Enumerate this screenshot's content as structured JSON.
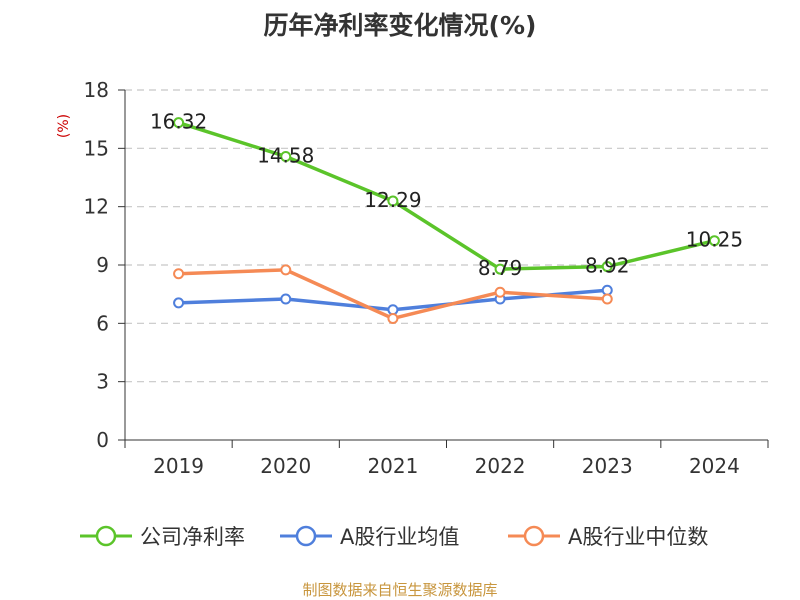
{
  "chart_data": {
    "type": "line",
    "title": "历年净利率变化情况(%)",
    "ylabel": "(%)",
    "categories": [
      "2019",
      "2020",
      "2021",
      "2022",
      "2023",
      "2024"
    ],
    "yticks": [
      0,
      3,
      6,
      9,
      12,
      15,
      18
    ],
    "ylim": [
      0,
      18
    ],
    "grid": true,
    "legend_position": "bottom",
    "series": [
      {
        "name": "公司净利率",
        "color": "#5bc42a",
        "values": [
          16.32,
          14.58,
          12.29,
          8.79,
          8.92,
          10.25
        ],
        "labels": [
          "16.32",
          "14.58",
          "12.29",
          "8.79",
          "8.92",
          "10.25"
        ]
      },
      {
        "name": "A股行业均值",
        "color": "#4f7fdc",
        "values": [
          7.05,
          7.25,
          6.7,
          7.25,
          7.7,
          null
        ]
      },
      {
        "name": "A股行业中位数",
        "color": "#f58a55",
        "values": [
          8.55,
          8.75,
          6.25,
          7.6,
          7.25,
          null
        ]
      }
    ],
    "source": "制图数据来自恒生聚源数据库"
  }
}
